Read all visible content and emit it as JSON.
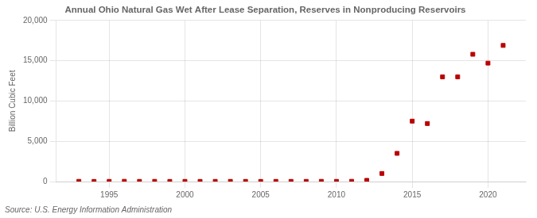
{
  "chart_data": {
    "type": "scatter",
    "title": "Annual Ohio Natural Gas Wet After Lease Separation, Reserves in Nonproducing Reservoirs",
    "ylabel": "Billion Cubic Feet",
    "source": "Source: U.S. Energy Information Administration",
    "x": [
      1993,
      1994,
      1995,
      1996,
      1997,
      1998,
      1999,
      2000,
      2001,
      2002,
      2003,
      2004,
      2005,
      2006,
      2007,
      2008,
      2009,
      2010,
      2011,
      2012,
      2013,
      2014,
      2015,
      2016,
      2017,
      2018,
      2019,
      2020,
      2021
    ],
    "values": [
      25,
      15,
      20,
      30,
      20,
      25,
      15,
      20,
      15,
      20,
      20,
      20,
      15,
      20,
      20,
      20,
      25,
      20,
      30,
      150,
      1000,
      3500,
      7500,
      7200,
      13000,
      13000,
      15800,
      14700,
      16900
    ],
    "color": "#bb0000",
    "marker": "square",
    "xlim": [
      1991.5,
      2022.5
    ],
    "xticks": [
      1995,
      2000,
      2005,
      2010,
      2015,
      2020
    ],
    "ylim": [
      0,
      20000
    ],
    "yticks": [
      0,
      {
        "value": 5000,
        "label": "5,000"
      },
      {
        "value": 10000,
        "label": "10,000"
      },
      {
        "value": 15000,
        "label": "15,000"
      },
      {
        "value": 20000,
        "label": "20,000"
      }
    ],
    "grid": true
  }
}
